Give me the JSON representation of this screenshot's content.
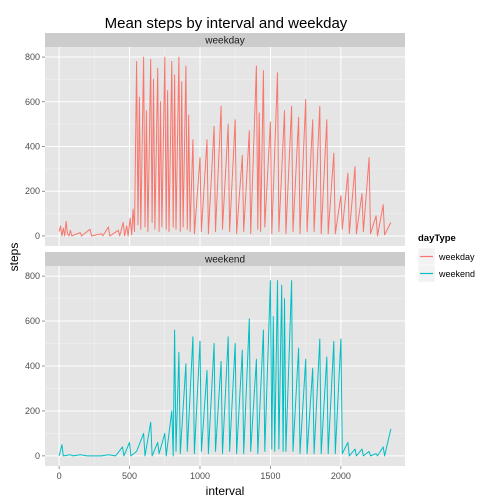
{
  "chart_data": {
    "type": "line",
    "title": "Mean steps by interval and weekday",
    "xlabel": "interval",
    "ylabel": "steps",
    "xlim": [
      -100,
      2455
    ],
    "ylim": [
      -45,
      845
    ],
    "x_ticks": [
      0,
      500,
      1000,
      1500,
      2000
    ],
    "y_ticks": [
      0,
      200,
      400,
      600,
      800
    ],
    "grid": true,
    "legend": {
      "title": "dayType",
      "placement": "right",
      "entries": [
        {
          "label": "weekday",
          "color": "#F8766D"
        },
        {
          "label": "weekend",
          "color": "#00BFC4"
        }
      ]
    },
    "facets": [
      {
        "strip": "weekday",
        "series": "weekday",
        "color": "#F8766D",
        "data_note": "raw (non-averaged) per-interval step values; x ranges 0-2355 in HHMM-style intervals",
        "points": [
          [
            0,
            20
          ],
          [
            10,
            45
          ],
          [
            20,
            0
          ],
          [
            30,
            35
          ],
          [
            40,
            0
          ],
          [
            50,
            65
          ],
          [
            60,
            10
          ],
          [
            70,
            0
          ],
          [
            80,
            25
          ],
          [
            90,
            0
          ],
          [
            150,
            15
          ],
          [
            160,
            0
          ],
          [
            220,
            30
          ],
          [
            230,
            0
          ],
          [
            300,
            10
          ],
          [
            310,
            0
          ],
          [
            350,
            40
          ],
          [
            360,
            0
          ],
          [
            420,
            25
          ],
          [
            430,
            0
          ],
          [
            455,
            60
          ],
          [
            465,
            0
          ],
          [
            480,
            45
          ],
          [
            490,
            0
          ],
          [
            505,
            80
          ],
          [
            515,
            5
          ],
          [
            525,
            120
          ],
          [
            535,
            20
          ],
          [
            550,
            780
          ],
          [
            560,
            50
          ],
          [
            570,
            620
          ],
          [
            580,
            30
          ],
          [
            600,
            800
          ],
          [
            610,
            40
          ],
          [
            620,
            560
          ],
          [
            630,
            20
          ],
          [
            650,
            790
          ],
          [
            660,
            60
          ],
          [
            670,
            700
          ],
          [
            680,
            30
          ],
          [
            700,
            750
          ],
          [
            710,
            20
          ],
          [
            720,
            600
          ],
          [
            730,
            40
          ],
          [
            750,
            800
          ],
          [
            760,
            30
          ],
          [
            770,
            650
          ],
          [
            780,
            20
          ],
          [
            800,
            780
          ],
          [
            810,
            40
          ],
          [
            820,
            720
          ],
          [
            830,
            30
          ],
          [
            850,
            800
          ],
          [
            860,
            20
          ],
          [
            870,
            690
          ],
          [
            880,
            40
          ],
          [
            900,
            760
          ],
          [
            910,
            30
          ],
          [
            920,
            540
          ],
          [
            930,
            20
          ],
          [
            950,
            430
          ],
          [
            960,
            10
          ],
          [
            1000,
            350
          ],
          [
            1010,
            20
          ],
          [
            1050,
            430
          ],
          [
            1060,
            10
          ],
          [
            1100,
            490
          ],
          [
            1110,
            20
          ],
          [
            1150,
            580
          ],
          [
            1160,
            30
          ],
          [
            1200,
            500
          ],
          [
            1210,
            20
          ],
          [
            1250,
            520
          ],
          [
            1260,
            10
          ],
          [
            1300,
            360
          ],
          [
            1310,
            20
          ],
          [
            1350,
            470
          ],
          [
            1360,
            10
          ],
          [
            1400,
            760
          ],
          [
            1410,
            30
          ],
          [
            1420,
            550
          ],
          [
            1430,
            20
          ],
          [
            1450,
            740
          ],
          [
            1460,
            40
          ],
          [
            1500,
            510
          ],
          [
            1510,
            10
          ],
          [
            1550,
            730
          ],
          [
            1560,
            20
          ],
          [
            1600,
            560
          ],
          [
            1610,
            10
          ],
          [
            1650,
            580
          ],
          [
            1660,
            20
          ],
          [
            1700,
            530
          ],
          [
            1710,
            10
          ],
          [
            1750,
            610
          ],
          [
            1760,
            20
          ],
          [
            1800,
            520
          ],
          [
            1810,
            20
          ],
          [
            1850,
            580
          ],
          [
            1860,
            10
          ],
          [
            1900,
            520
          ],
          [
            1910,
            10
          ],
          [
            1950,
            370
          ],
          [
            1960,
            10
          ],
          [
            2000,
            180
          ],
          [
            2010,
            30
          ],
          [
            2050,
            280
          ],
          [
            2060,
            10
          ],
          [
            2100,
            310
          ],
          [
            2110,
            10
          ],
          [
            2150,
            190
          ],
          [
            2160,
            20
          ],
          [
            2200,
            350
          ],
          [
            2210,
            10
          ],
          [
            2250,
            90
          ],
          [
            2260,
            0
          ],
          [
            2300,
            140
          ],
          [
            2310,
            5
          ],
          [
            2355,
            60
          ]
        ]
      },
      {
        "strip": "weekend",
        "series": "weekend",
        "color": "#00BFC4",
        "data_note": "raw (non-averaged) per-interval step values; x ranges 0-2355 in HHMM-style intervals",
        "points": [
          [
            0,
            0
          ],
          [
            20,
            50
          ],
          [
            30,
            0
          ],
          [
            80,
            5
          ],
          [
            100,
            0
          ],
          [
            150,
            5
          ],
          [
            200,
            0
          ],
          [
            250,
            0
          ],
          [
            300,
            0
          ],
          [
            350,
            5
          ],
          [
            400,
            0
          ],
          [
            450,
            40
          ],
          [
            460,
            0
          ],
          [
            500,
            60
          ],
          [
            510,
            0
          ],
          [
            550,
            20
          ],
          [
            600,
            100
          ],
          [
            610,
            0
          ],
          [
            650,
            150
          ],
          [
            660,
            0
          ],
          [
            700,
            60
          ],
          [
            710,
            10
          ],
          [
            750,
            100
          ],
          [
            760,
            0
          ],
          [
            800,
            200
          ],
          [
            810,
            0
          ],
          [
            820,
            560
          ],
          [
            830,
            20
          ],
          [
            850,
            460
          ],
          [
            860,
            10
          ],
          [
            900,
            410
          ],
          [
            910,
            20
          ],
          [
            950,
            530
          ],
          [
            960,
            10
          ],
          [
            1000,
            510
          ],
          [
            1010,
            20
          ],
          [
            1050,
            380
          ],
          [
            1060,
            10
          ],
          [
            1100,
            500
          ],
          [
            1110,
            20
          ],
          [
            1150,
            420
          ],
          [
            1160,
            10
          ],
          [
            1200,
            530
          ],
          [
            1210,
            20
          ],
          [
            1250,
            500
          ],
          [
            1260,
            10
          ],
          [
            1300,
            470
          ],
          [
            1310,
            10
          ],
          [
            1350,
            610
          ],
          [
            1360,
            20
          ],
          [
            1400,
            430
          ],
          [
            1410,
            10
          ],
          [
            1450,
            560
          ],
          [
            1460,
            20
          ],
          [
            1500,
            780
          ],
          [
            1510,
            30
          ],
          [
            1520,
            620
          ],
          [
            1530,
            20
          ],
          [
            1550,
            780
          ],
          [
            1560,
            30
          ],
          [
            1580,
            760
          ],
          [
            1590,
            20
          ],
          [
            1600,
            700
          ],
          [
            1610,
            20
          ],
          [
            1650,
            780
          ],
          [
            1660,
            20
          ],
          [
            1700,
            480
          ],
          [
            1710,
            10
          ],
          [
            1750,
            430
          ],
          [
            1760,
            10
          ],
          [
            1800,
            390
          ],
          [
            1810,
            10
          ],
          [
            1850,
            520
          ],
          [
            1860,
            10
          ],
          [
            1900,
            440
          ],
          [
            1910,
            10
          ],
          [
            1950,
            510
          ],
          [
            1960,
            10
          ],
          [
            2000,
            520
          ],
          [
            2010,
            10
          ],
          [
            2050,
            60
          ],
          [
            2060,
            0
          ],
          [
            2100,
            30
          ],
          [
            2110,
            0
          ],
          [
            2150,
            30
          ],
          [
            2160,
            0
          ],
          [
            2200,
            20
          ],
          [
            2210,
            0
          ],
          [
            2250,
            10
          ],
          [
            2260,
            0
          ],
          [
            2300,
            40
          ],
          [
            2310,
            0
          ],
          [
            2355,
            120
          ]
        ]
      }
    ]
  }
}
